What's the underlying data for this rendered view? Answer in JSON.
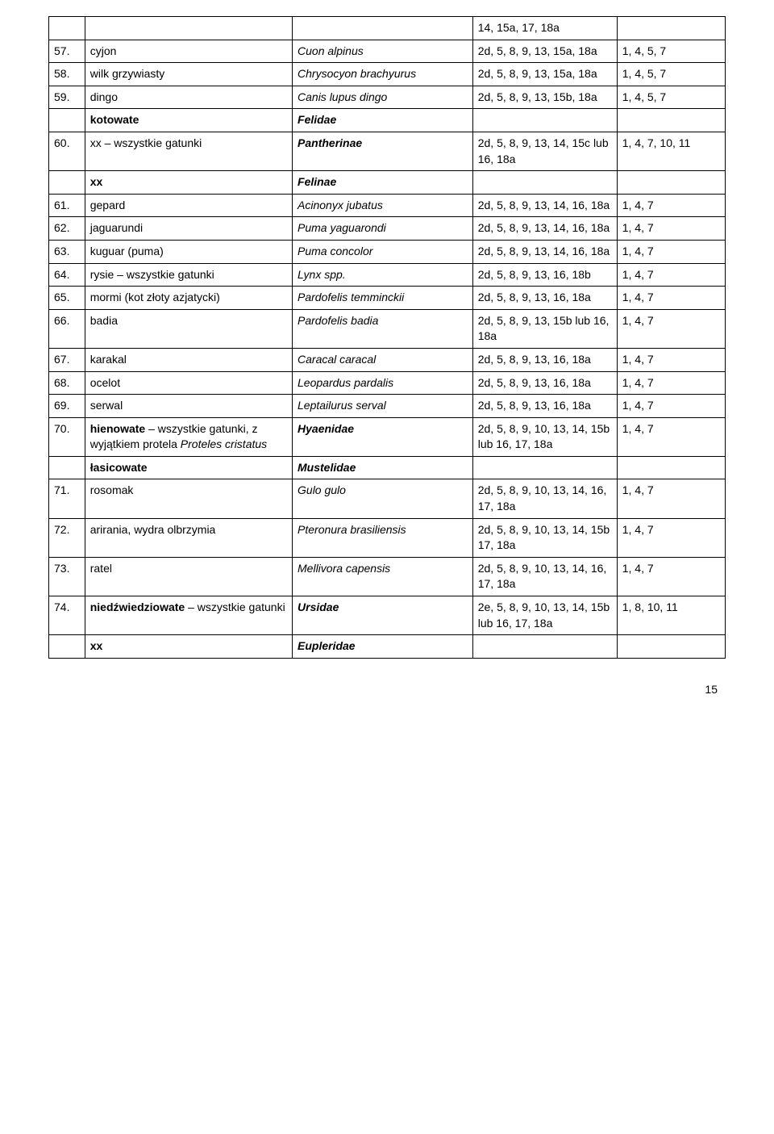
{
  "page_number": "15",
  "rows": [
    {
      "num": "",
      "name": "",
      "sci": "",
      "codes": "14, 15a, 17, 18a",
      "last": "",
      "styles": {}
    },
    {
      "num": "57.",
      "name": "cyjon",
      "sci": "Cuon alpinus",
      "codes": "2d, 5, 8, 9, 13, 15a, 18a",
      "last": "1, 4, 5, 7",
      "styles": {
        "sci": "italic"
      }
    },
    {
      "num": "58.",
      "name": "wilk grzywiasty",
      "sci": "Chrysocyon brachyurus",
      "codes": "2d, 5, 8, 9, 13, 15a, 18a",
      "last": "1, 4, 5, 7",
      "styles": {
        "sci": "italic"
      }
    },
    {
      "num": "59.",
      "name": "dingo",
      "sci": "Canis lupus dingo",
      "codes": "2d, 5, 8, 9, 13, 15b, 18a",
      "last": "1, 4, 5, 7",
      "styles": {
        "sci": "italic"
      }
    },
    {
      "num": "",
      "name": "kotowate",
      "sci": "Felidae",
      "codes": "",
      "last": "",
      "styles": {
        "name": "bold",
        "sci": "bolditalic"
      }
    },
    {
      "num": "60.",
      "name": "xx – wszystkie gatunki",
      "sci": "Pantherinae",
      "codes": "2d, 5, 8, 9, 13, 14, 15c lub 16, 18a",
      "last": "1, 4, 7, 10, 11",
      "styles": {
        "sci": "bolditalic"
      }
    },
    {
      "num": "",
      "name": "xx",
      "sci": "Felinae",
      "codes": "",
      "last": "",
      "styles": {
        "name": "bold",
        "sci": "bolditalic"
      }
    },
    {
      "num": "61.",
      "name": "gepard",
      "sci": "Acinonyx jubatus",
      "codes": "2d, 5, 8, 9, 13, 14, 16, 18a",
      "last": "1, 4, 7",
      "styles": {
        "sci": "italic"
      }
    },
    {
      "num": "62.",
      "name": "jaguarundi",
      "sci": "Puma yaguarondi",
      "codes": "2d, 5, 8, 9, 13, 14, 16, 18a",
      "last": "1, 4, 7",
      "styles": {
        "sci": "italic"
      }
    },
    {
      "num": "63.",
      "name": "kuguar (puma)",
      "sci": "Puma concolor",
      "codes": "2d, 5, 8, 9, 13, 14, 16, 18a",
      "last": "1, 4, 7",
      "styles": {
        "sci": "italic"
      }
    },
    {
      "num": "64.",
      "name": "rysie – wszystkie gatunki",
      "sci": "Lynx spp.",
      "codes": "2d, 5, 8, 9, 13, 16, 18b",
      "last": "1, 4, 7",
      "styles": {
        "sci": "italic"
      }
    },
    {
      "num": "65.",
      "name": "mormi (kot złoty azjatycki)",
      "sci": "Pardofelis temminckii",
      "codes": "2d, 5, 8, 9, 13, 16, 18a",
      "last": "1, 4, 7",
      "styles": {
        "sci": "italic"
      }
    },
    {
      "num": "66.",
      "name": "badia",
      "sci": "Pardofelis badia",
      "codes": "2d, 5, 8, 9, 13, 15b lub 16, 18a",
      "last": "1, 4, 7",
      "styles": {
        "sci": "italic"
      }
    },
    {
      "num": "67.",
      "name": "karakal",
      "sci": "Caracal caracal",
      "codes": "2d, 5, 8, 9, 13, 16, 18a",
      "last": "1, 4, 7",
      "styles": {
        "sci": "italic"
      }
    },
    {
      "num": "68.",
      "name": "ocelot",
      "sci": "Leopardus pardalis",
      "codes": "2d, 5, 8, 9, 13, 16, 18a",
      "last": "1, 4, 7",
      "styles": {
        "sci": "italic"
      }
    },
    {
      "num": "69.",
      "name": "serwal",
      "sci": "Leptailurus serval",
      "codes": "2d, 5, 8, 9, 13, 16, 18a",
      "last": "1, 4, 7",
      "styles": {
        "sci": "italic"
      }
    },
    {
      "num": "70.",
      "name": "<b>hienowate</b> – wszystkie gatunki, z wyjątkiem protela <i>Proteles cristatus</i>",
      "sci": "Hyaenidae",
      "codes": "2d, 5, 8, 9, 10, 13, 14, 15b lub 16, 17, 18a",
      "last": "1, 4, 7",
      "styles": {
        "sci": "bolditalic"
      },
      "html_name": true
    },
    {
      "num": "",
      "name": "łasicowate",
      "sci": "Mustelidae",
      "codes": "",
      "last": "",
      "styles": {
        "name": "bold",
        "sci": "bolditalic"
      }
    },
    {
      "num": "71.",
      "name": "rosomak",
      "sci": "Gulo gulo",
      "codes": "2d, 5, 8, 9, 10, 13, 14, 16, 17, 18a",
      "last": "1, 4, 7",
      "styles": {
        "sci": "italic"
      }
    },
    {
      "num": "72.",
      "name": "arirania, wydra olbrzymia",
      "sci": "Pteronura brasiliensis",
      "codes": "2d, 5, 8, 9, 10, 13, 14, 15b 17, 18a",
      "last": "1, 4, 7",
      "styles": {
        "sci": "italic"
      }
    },
    {
      "num": "73.",
      "name": "ratel",
      "sci": "Mellivora capensis",
      "codes": "2d, 5, 8, 9, 10, 13, 14, 16, 17, 18a",
      "last": "1, 4, 7",
      "styles": {
        "sci": "italic"
      }
    },
    {
      "num": "74.",
      "name": "<b>niedźwiedziowate</b> – wszystkie gatunki",
      "sci": "Ursidae",
      "codes": "2e, 5, 8, 9, 10, 13, 14, 15b lub 16, 17, 18a",
      "last": "1, 8, 10, 11",
      "styles": {
        "sci": "bolditalic"
      },
      "html_name": true
    },
    {
      "num": "",
      "name": "xx",
      "sci": "Eupleridae",
      "codes": "",
      "last": "",
      "styles": {
        "name": "bold",
        "sci": "bolditalic"
      }
    }
  ]
}
